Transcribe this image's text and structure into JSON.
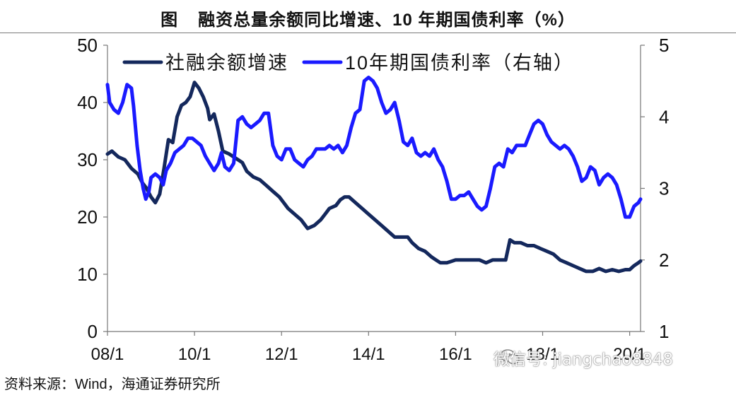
{
  "header": {
    "figure_label": "图",
    "title": "融资总量余额同比增速、10 年期国债利率（%）"
  },
  "source": "资料来源：Wind，海通证券研究所",
  "watermark": {
    "text": "微信号: jiangchao8848",
    "icon": "wechat-icon"
  },
  "chart_data": {
    "type": "line",
    "title": "融资总量余额同比增速、10 年期国债利率（%）",
    "x_tick_labels": [
      "08/1",
      "10/1",
      "12/1",
      "14/1",
      "16/1",
      "18/1",
      "20/1"
    ],
    "x_range": [
      2008.0,
      2020.25
    ],
    "y_left": {
      "range": [
        0,
        50
      ],
      "ticks": [
        "0",
        "10",
        "20",
        "30",
        "40",
        "50"
      ]
    },
    "y_right": {
      "range": [
        1,
        5
      ],
      "ticks": [
        "1",
        "2",
        "3",
        "4",
        "5"
      ]
    },
    "grid": false,
    "legend_position": "top-left",
    "series": [
      {
        "name": "社融余额增速",
        "axis": "left",
        "color": "#14285c",
        "points": [
          [
            2008.0,
            31.0
          ],
          [
            2008.1,
            31.5
          ],
          [
            2008.25,
            30.5
          ],
          [
            2008.4,
            30.0
          ],
          [
            2008.55,
            28.5
          ],
          [
            2008.7,
            27.5
          ],
          [
            2008.8,
            26.0
          ],
          [
            2008.9,
            25.0
          ],
          [
            2009.0,
            23.5
          ],
          [
            2009.1,
            22.5
          ],
          [
            2009.2,
            24.0
          ],
          [
            2009.3,
            28.5
          ],
          [
            2009.4,
            33.5
          ],
          [
            2009.5,
            33.0
          ],
          [
            2009.6,
            37.5
          ],
          [
            2009.7,
            39.5
          ],
          [
            2009.8,
            40.0
          ],
          [
            2009.9,
            41.0
          ],
          [
            2010.0,
            43.5
          ],
          [
            2010.1,
            42.5
          ],
          [
            2010.2,
            41.0
          ],
          [
            2010.3,
            39.0
          ],
          [
            2010.35,
            37.0
          ],
          [
            2010.45,
            38.0
          ],
          [
            2010.55,
            35.0
          ],
          [
            2010.65,
            31.5
          ],
          [
            2010.8,
            31.0
          ],
          [
            2010.9,
            30.5
          ],
          [
            2011.0,
            30.0
          ],
          [
            2011.1,
            29.5
          ],
          [
            2011.2,
            28.0
          ],
          [
            2011.35,
            27.0
          ],
          [
            2011.5,
            26.5
          ],
          [
            2011.65,
            25.5
          ],
          [
            2011.8,
            24.5
          ],
          [
            2011.95,
            23.5
          ],
          [
            2012.05,
            22.5
          ],
          [
            2012.15,
            21.5
          ],
          [
            2012.3,
            20.5
          ],
          [
            2012.45,
            19.5
          ],
          [
            2012.6,
            18.0
          ],
          [
            2012.75,
            18.5
          ],
          [
            2012.9,
            19.5
          ],
          [
            2013.0,
            20.5
          ],
          [
            2013.1,
            21.5
          ],
          [
            2013.25,
            22.0
          ],
          [
            2013.35,
            23.0
          ],
          [
            2013.45,
            23.5
          ],
          [
            2013.55,
            23.5
          ],
          [
            2013.7,
            22.5
          ],
          [
            2013.85,
            21.5
          ],
          [
            2014.0,
            20.5
          ],
          [
            2014.15,
            19.5
          ],
          [
            2014.3,
            18.5
          ],
          [
            2014.45,
            17.5
          ],
          [
            2014.6,
            16.5
          ],
          [
            2014.75,
            16.5
          ],
          [
            2014.9,
            16.5
          ],
          [
            2015.0,
            15.5
          ],
          [
            2015.15,
            14.5
          ],
          [
            2015.3,
            14.0
          ],
          [
            2015.45,
            13.0
          ],
          [
            2015.55,
            12.5
          ],
          [
            2015.65,
            12.0
          ],
          [
            2015.8,
            12.0
          ],
          [
            2016.0,
            12.5
          ],
          [
            2016.2,
            12.5
          ],
          [
            2016.4,
            12.5
          ],
          [
            2016.55,
            12.5
          ],
          [
            2016.7,
            12.0
          ],
          [
            2016.85,
            12.5
          ],
          [
            2017.0,
            12.5
          ],
          [
            2017.15,
            12.5
          ],
          [
            2017.25,
            16.0
          ],
          [
            2017.35,
            15.5
          ],
          [
            2017.5,
            15.5
          ],
          [
            2017.65,
            15.0
          ],
          [
            2017.8,
            15.0
          ],
          [
            2017.95,
            14.5
          ],
          [
            2018.1,
            14.0
          ],
          [
            2018.25,
            13.5
          ],
          [
            2018.4,
            12.5
          ],
          [
            2018.55,
            12.0
          ],
          [
            2018.7,
            11.5
          ],
          [
            2018.85,
            11.0
          ],
          [
            2019.0,
            10.5
          ],
          [
            2019.15,
            10.5
          ],
          [
            2019.3,
            11.0
          ],
          [
            2019.45,
            10.5
          ],
          [
            2019.6,
            10.8
          ],
          [
            2019.75,
            10.5
          ],
          [
            2019.9,
            10.8
          ],
          [
            2020.0,
            10.8
          ],
          [
            2020.1,
            11.5
          ],
          [
            2020.2,
            12.0
          ],
          [
            2020.25,
            12.3
          ]
        ]
      },
      {
        "name": "10年期国债利率（右轴）",
        "axis": "right",
        "color": "#1a1aff",
        "points": [
          [
            2008.0,
            4.45
          ],
          [
            2008.05,
            4.2
          ],
          [
            2008.15,
            4.1
          ],
          [
            2008.25,
            4.05
          ],
          [
            2008.35,
            4.2
          ],
          [
            2008.45,
            4.45
          ],
          [
            2008.55,
            4.4
          ],
          [
            2008.6,
            4.15
          ],
          [
            2008.68,
            3.6
          ],
          [
            2008.75,
            3.25
          ],
          [
            2008.82,
            3.0
          ],
          [
            2008.88,
            2.85
          ],
          [
            2008.95,
            2.95
          ],
          [
            2009.0,
            3.15
          ],
          [
            2009.1,
            3.2
          ],
          [
            2009.2,
            3.15
          ],
          [
            2009.28,
            3.05
          ],
          [
            2009.35,
            3.25
          ],
          [
            2009.45,
            3.35
          ],
          [
            2009.55,
            3.5
          ],
          [
            2009.65,
            3.55
          ],
          [
            2009.75,
            3.6
          ],
          [
            2009.85,
            3.7
          ],
          [
            2009.95,
            3.7
          ],
          [
            2010.05,
            3.65
          ],
          [
            2010.15,
            3.6
          ],
          [
            2010.25,
            3.45
          ],
          [
            2010.35,
            3.35
          ],
          [
            2010.45,
            3.25
          ],
          [
            2010.55,
            3.35
          ],
          [
            2010.62,
            3.5
          ],
          [
            2010.7,
            3.3
          ],
          [
            2010.8,
            3.25
          ],
          [
            2010.9,
            3.35
          ],
          [
            2011.0,
            3.95
          ],
          [
            2011.1,
            4.0
          ],
          [
            2011.2,
            3.9
          ],
          [
            2011.3,
            3.85
          ],
          [
            2011.4,
            3.9
          ],
          [
            2011.5,
            3.95
          ],
          [
            2011.6,
            4.05
          ],
          [
            2011.7,
            4.05
          ],
          [
            2011.8,
            3.6
          ],
          [
            2011.9,
            3.45
          ],
          [
            2012.0,
            3.4
          ],
          [
            2012.1,
            3.55
          ],
          [
            2012.2,
            3.55
          ],
          [
            2012.3,
            3.4
          ],
          [
            2012.4,
            3.35
          ],
          [
            2012.5,
            3.3
          ],
          [
            2012.6,
            3.4
          ],
          [
            2012.7,
            3.45
          ],
          [
            2012.8,
            3.55
          ],
          [
            2012.9,
            3.55
          ],
          [
            2013.0,
            3.55
          ],
          [
            2013.1,
            3.6
          ],
          [
            2013.2,
            3.55
          ],
          [
            2013.3,
            3.6
          ],
          [
            2013.4,
            3.5
          ],
          [
            2013.5,
            3.6
          ],
          [
            2013.6,
            3.85
          ],
          [
            2013.7,
            4.05
          ],
          [
            2013.8,
            4.1
          ],
          [
            2013.9,
            4.5
          ],
          [
            2014.0,
            4.55
          ],
          [
            2014.1,
            4.5
          ],
          [
            2014.2,
            4.4
          ],
          [
            2014.3,
            4.2
          ],
          [
            2014.4,
            4.05
          ],
          [
            2014.5,
            4.1
          ],
          [
            2014.6,
            4.2
          ],
          [
            2014.7,
            3.95
          ],
          [
            2014.8,
            3.65
          ],
          [
            2014.9,
            3.6
          ],
          [
            2015.0,
            3.7
          ],
          [
            2015.1,
            3.5
          ],
          [
            2015.2,
            3.45
          ],
          [
            2015.3,
            3.5
          ],
          [
            2015.4,
            3.45
          ],
          [
            2015.5,
            3.55
          ],
          [
            2015.6,
            3.4
          ],
          [
            2015.7,
            3.3
          ],
          [
            2015.8,
            3.1
          ],
          [
            2015.9,
            2.85
          ],
          [
            2016.0,
            2.85
          ],
          [
            2016.1,
            2.9
          ],
          [
            2016.2,
            2.9
          ],
          [
            2016.3,
            2.95
          ],
          [
            2016.4,
            2.85
          ],
          [
            2016.5,
            2.75
          ],
          [
            2016.6,
            2.7
          ],
          [
            2016.7,
            2.75
          ],
          [
            2016.8,
            3.0
          ],
          [
            2016.9,
            3.3
          ],
          [
            2017.0,
            3.35
          ],
          [
            2017.1,
            3.3
          ],
          [
            2017.2,
            3.55
          ],
          [
            2017.3,
            3.5
          ],
          [
            2017.4,
            3.6
          ],
          [
            2017.5,
            3.6
          ],
          [
            2017.6,
            3.6
          ],
          [
            2017.7,
            3.75
          ],
          [
            2017.8,
            3.9
          ],
          [
            2017.9,
            3.95
          ],
          [
            2018.0,
            3.9
          ],
          [
            2018.1,
            3.75
          ],
          [
            2018.2,
            3.65
          ],
          [
            2018.3,
            3.6
          ],
          [
            2018.4,
            3.55
          ],
          [
            2018.5,
            3.6
          ],
          [
            2018.6,
            3.55
          ],
          [
            2018.7,
            3.45
          ],
          [
            2018.8,
            3.3
          ],
          [
            2018.9,
            3.1
          ],
          [
            2019.0,
            3.15
          ],
          [
            2019.1,
            3.3
          ],
          [
            2019.2,
            3.25
          ],
          [
            2019.3,
            3.05
          ],
          [
            2019.4,
            3.15
          ],
          [
            2019.5,
            3.2
          ],
          [
            2019.6,
            3.15
          ],
          [
            2019.7,
            3.05
          ],
          [
            2019.8,
            2.85
          ],
          [
            2019.9,
            2.6
          ],
          [
            2020.0,
            2.6
          ],
          [
            2020.1,
            2.75
          ],
          [
            2020.2,
            2.8
          ],
          [
            2020.25,
            2.85
          ]
        ]
      }
    ]
  }
}
